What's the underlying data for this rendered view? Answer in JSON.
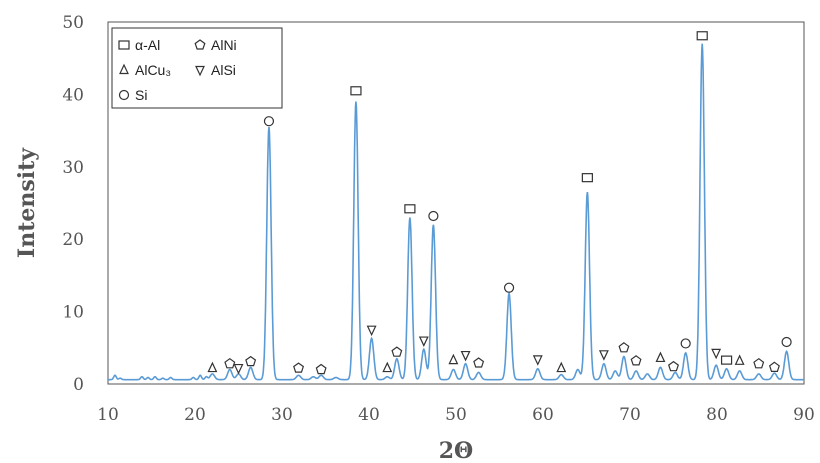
{
  "chart_data": {
    "type": "line",
    "title": "",
    "xlabel": "2Θ",
    "ylabel": "Intensity",
    "xlim": [
      10,
      90
    ],
    "ylim": [
      0,
      50
    ],
    "xticks": [
      "10",
      "20",
      "30",
      "40",
      "50",
      "60",
      "70",
      "80",
      "90"
    ],
    "yticks": [
      "0",
      "10",
      "20",
      "30",
      "40",
      "50"
    ],
    "grid": false,
    "legend_position": "top-left",
    "line_color": "#5b9bd5",
    "baseline": 0.6,
    "noise": [
      {
        "x": 10.8,
        "y": 1.2
      },
      {
        "x": 11.4,
        "y": 0.8
      },
      {
        "x": 13.9,
        "y": 1.0
      },
      {
        "x": 14.6,
        "y": 0.9
      },
      {
        "x": 15.4,
        "y": 1.0
      },
      {
        "x": 16.3,
        "y": 0.8
      },
      {
        "x": 17.2,
        "y": 0.9
      },
      {
        "x": 19.8,
        "y": 0.9
      },
      {
        "x": 20.6,
        "y": 1.2
      },
      {
        "x": 21.3,
        "y": 1.0
      }
    ],
    "peaks": [
      {
        "x": 22.0,
        "y": 1.4,
        "w": 0.25
      },
      {
        "x": 24.0,
        "y": 2.0,
        "w": 0.25
      },
      {
        "x": 25.0,
        "y": 1.4,
        "w": 0.25
      },
      {
        "x": 26.4,
        "y": 2.3,
        "w": 0.25
      },
      {
        "x": 28.5,
        "y": 35.5,
        "w": 0.25
      },
      {
        "x": 31.9,
        "y": 1.2,
        "w": 0.25
      },
      {
        "x": 33.6,
        "y": 1.0,
        "w": 0.25
      },
      {
        "x": 34.5,
        "y": 1.2,
        "w": 0.25
      },
      {
        "x": 36.2,
        "y": 0.9,
        "w": 0.25
      },
      {
        "x": 38.5,
        "y": 39.0,
        "w": 0.25
      },
      {
        "x": 40.3,
        "y": 6.3,
        "w": 0.25
      },
      {
        "x": 42.1,
        "y": 1.0,
        "w": 0.25
      },
      {
        "x": 43.2,
        "y": 3.5,
        "w": 0.25
      },
      {
        "x": 44.7,
        "y": 23.0,
        "w": 0.25
      },
      {
        "x": 46.3,
        "y": 4.8,
        "w": 0.25
      },
      {
        "x": 47.4,
        "y": 22.0,
        "w": 0.25
      },
      {
        "x": 49.7,
        "y": 2.0,
        "w": 0.25
      },
      {
        "x": 51.1,
        "y": 2.8,
        "w": 0.25
      },
      {
        "x": 52.6,
        "y": 1.6,
        "w": 0.25
      },
      {
        "x": 56.1,
        "y": 12.5,
        "w": 0.25
      },
      {
        "x": 59.4,
        "y": 2.1,
        "w": 0.25
      },
      {
        "x": 62.1,
        "y": 1.3,
        "w": 0.25
      },
      {
        "x": 64.0,
        "y": 2.0,
        "w": 0.25
      },
      {
        "x": 65.1,
        "y": 26.5,
        "w": 0.25
      },
      {
        "x": 67.0,
        "y": 2.8,
        "w": 0.25
      },
      {
        "x": 68.3,
        "y": 1.8,
        "w": 0.25
      },
      {
        "x": 69.3,
        "y": 3.8,
        "w": 0.25
      },
      {
        "x": 70.7,
        "y": 1.8,
        "w": 0.25
      },
      {
        "x": 72.0,
        "y": 1.4,
        "w": 0.25
      },
      {
        "x": 73.5,
        "y": 2.3,
        "w": 0.25
      },
      {
        "x": 75.2,
        "y": 1.6,
        "w": 0.25
      },
      {
        "x": 76.4,
        "y": 4.3,
        "w": 0.25
      },
      {
        "x": 78.3,
        "y": 47.0,
        "w": 0.25
      },
      {
        "x": 79.9,
        "y": 2.6,
        "w": 0.25
      },
      {
        "x": 81.1,
        "y": 2.1,
        "w": 0.25
      },
      {
        "x": 82.6,
        "y": 1.8,
        "w": 0.25
      },
      {
        "x": 84.8,
        "y": 1.4,
        "w": 0.25
      },
      {
        "x": 86.6,
        "y": 1.5,
        "w": 0.25
      },
      {
        "x": 88.0,
        "y": 4.5,
        "w": 0.25
      }
    ],
    "legend": [
      {
        "symbol": "square",
        "label": "α-Al"
      },
      {
        "symbol": "pentagon",
        "label": "AlNi"
      },
      {
        "symbol": "triangle-up",
        "label": "AlCu₃"
      },
      {
        "symbol": "triangle-down",
        "label": "AlSi"
      },
      {
        "symbol": "circle",
        "label": "Si"
      }
    ],
    "markers": [
      {
        "x": 22.0,
        "y": 2.2,
        "symbol": "triangle-up"
      },
      {
        "x": 24.0,
        "y": 2.8,
        "symbol": "pentagon"
      },
      {
        "x": 25.0,
        "y": 2.2,
        "symbol": "triangle-down"
      },
      {
        "x": 26.4,
        "y": 3.1,
        "symbol": "pentagon"
      },
      {
        "x": 28.5,
        "y": 36.3,
        "symbol": "circle"
      },
      {
        "x": 31.9,
        "y": 2.2,
        "symbol": "pentagon"
      },
      {
        "x": 34.5,
        "y": 2.0,
        "symbol": "pentagon"
      },
      {
        "x": 38.5,
        "y": 40.5,
        "symbol": "square"
      },
      {
        "x": 40.3,
        "y": 7.5,
        "symbol": "triangle-down"
      },
      {
        "x": 42.1,
        "y": 2.2,
        "symbol": "triangle-up"
      },
      {
        "x": 43.2,
        "y": 4.4,
        "symbol": "pentagon"
      },
      {
        "x": 44.7,
        "y": 24.2,
        "symbol": "square"
      },
      {
        "x": 46.3,
        "y": 6.0,
        "symbol": "triangle-down"
      },
      {
        "x": 47.4,
        "y": 23.2,
        "symbol": "circle"
      },
      {
        "x": 49.7,
        "y": 3.3,
        "symbol": "triangle-up"
      },
      {
        "x": 51.1,
        "y": 4.0,
        "symbol": "triangle-down"
      },
      {
        "x": 52.6,
        "y": 2.9,
        "symbol": "pentagon"
      },
      {
        "x": 56.1,
        "y": 13.3,
        "symbol": "circle"
      },
      {
        "x": 59.4,
        "y": 3.4,
        "symbol": "triangle-down"
      },
      {
        "x": 62.1,
        "y": 2.2,
        "symbol": "triangle-up"
      },
      {
        "x": 65.1,
        "y": 28.5,
        "symbol": "square"
      },
      {
        "x": 67.0,
        "y": 4.1,
        "symbol": "triangle-down"
      },
      {
        "x": 69.3,
        "y": 5.0,
        "symbol": "pentagon"
      },
      {
        "x": 70.7,
        "y": 3.2,
        "symbol": "pentagon"
      },
      {
        "x": 73.5,
        "y": 3.6,
        "symbol": "triangle-up"
      },
      {
        "x": 75.0,
        "y": 2.4,
        "symbol": "pentagon"
      },
      {
        "x": 76.4,
        "y": 5.6,
        "symbol": "circle"
      },
      {
        "x": 78.3,
        "y": 48.1,
        "symbol": "square"
      },
      {
        "x": 79.9,
        "y": 4.3,
        "symbol": "triangle-down"
      },
      {
        "x": 81.1,
        "y": 3.3,
        "symbol": "square"
      },
      {
        "x": 82.6,
        "y": 3.2,
        "symbol": "triangle-up"
      },
      {
        "x": 84.8,
        "y": 2.8,
        "symbol": "pentagon"
      },
      {
        "x": 86.6,
        "y": 2.3,
        "symbol": "pentagon"
      },
      {
        "x": 88.0,
        "y": 5.8,
        "symbol": "circle"
      }
    ]
  }
}
